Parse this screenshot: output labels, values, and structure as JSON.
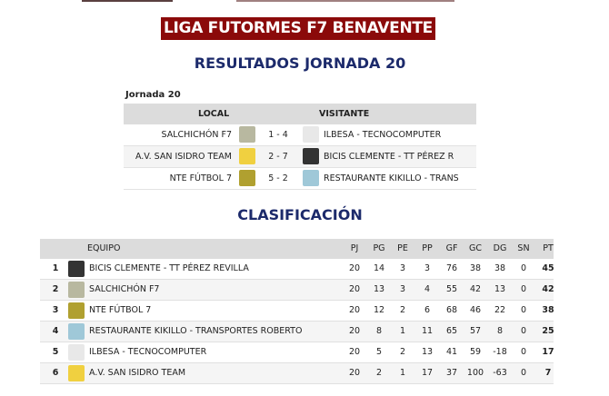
{
  "banner": "LIGA FUTORMES F7 BENAVENTE",
  "results_title": "RESULTADOS JORNADA 20",
  "jornada_label": "Jornada 20",
  "results_headers": {
    "local": "LOCAL",
    "visitante": "VISITANTE"
  },
  "results": [
    {
      "local": "SALCHICHÓN F7",
      "score": "1 - 4",
      "visitante": "ILBESA - TECNOCOMPUTER",
      "local_logo": "#b8b8a0",
      "vis_logo": "#e8e8e8"
    },
    {
      "local": "A.V. SAN ISIDRO TEAM",
      "score": "2 - 7",
      "visitante": "BICIS CLEMENTE - TT PÉREZ R",
      "local_logo": "#f0d040",
      "vis_logo": "#333333"
    },
    {
      "local": "NTE FÚTBOL 7",
      "score": "5 - 2",
      "visitante": "RESTAURANTE KIKILLO - TRANS",
      "local_logo": "#b0a030",
      "vis_logo": "#9fc8d8"
    }
  ],
  "standings_title": "CLASIFICACIÓN",
  "standings_headers": [
    "EQUIPO",
    "PJ",
    "PG",
    "PE",
    "PP",
    "GF",
    "GC",
    "DG",
    "SN",
    "PT"
  ],
  "standings": [
    {
      "pos": "1",
      "team": "BICIS CLEMENTE - TT PÉREZ REVILLA",
      "logo": "#333333",
      "v": [
        "20",
        "14",
        "3",
        "3",
        "76",
        "38",
        "38",
        "0",
        "45"
      ]
    },
    {
      "pos": "2",
      "team": "SALCHICHÓN F7",
      "logo": "#b8b8a0",
      "v": [
        "20",
        "13",
        "3",
        "4",
        "55",
        "42",
        "13",
        "0",
        "42"
      ]
    },
    {
      "pos": "3",
      "team": "NTE FÚTBOL 7",
      "logo": "#b0a030",
      "v": [
        "20",
        "12",
        "2",
        "6",
        "68",
        "46",
        "22",
        "0",
        "38"
      ]
    },
    {
      "pos": "4",
      "team": "RESTAURANTE KIKILLO - TRANSPORTES ROBERTO",
      "logo": "#9fc8d8",
      "v": [
        "20",
        "8",
        "1",
        "11",
        "65",
        "57",
        "8",
        "0",
        "25"
      ]
    },
    {
      "pos": "5",
      "team": "ILBESA - TECNOCOMPUTER",
      "logo": "#e8e8e8",
      "v": [
        "20",
        "5",
        "2",
        "13",
        "41",
        "59",
        "-18",
        "0",
        "17"
      ]
    },
    {
      "pos": "6",
      "team": "A.V. SAN ISIDRO TEAM",
      "logo": "#f0d040",
      "v": [
        "20",
        "2",
        "1",
        "17",
        "37",
        "100",
        "-63",
        "0",
        "7"
      ]
    }
  ]
}
